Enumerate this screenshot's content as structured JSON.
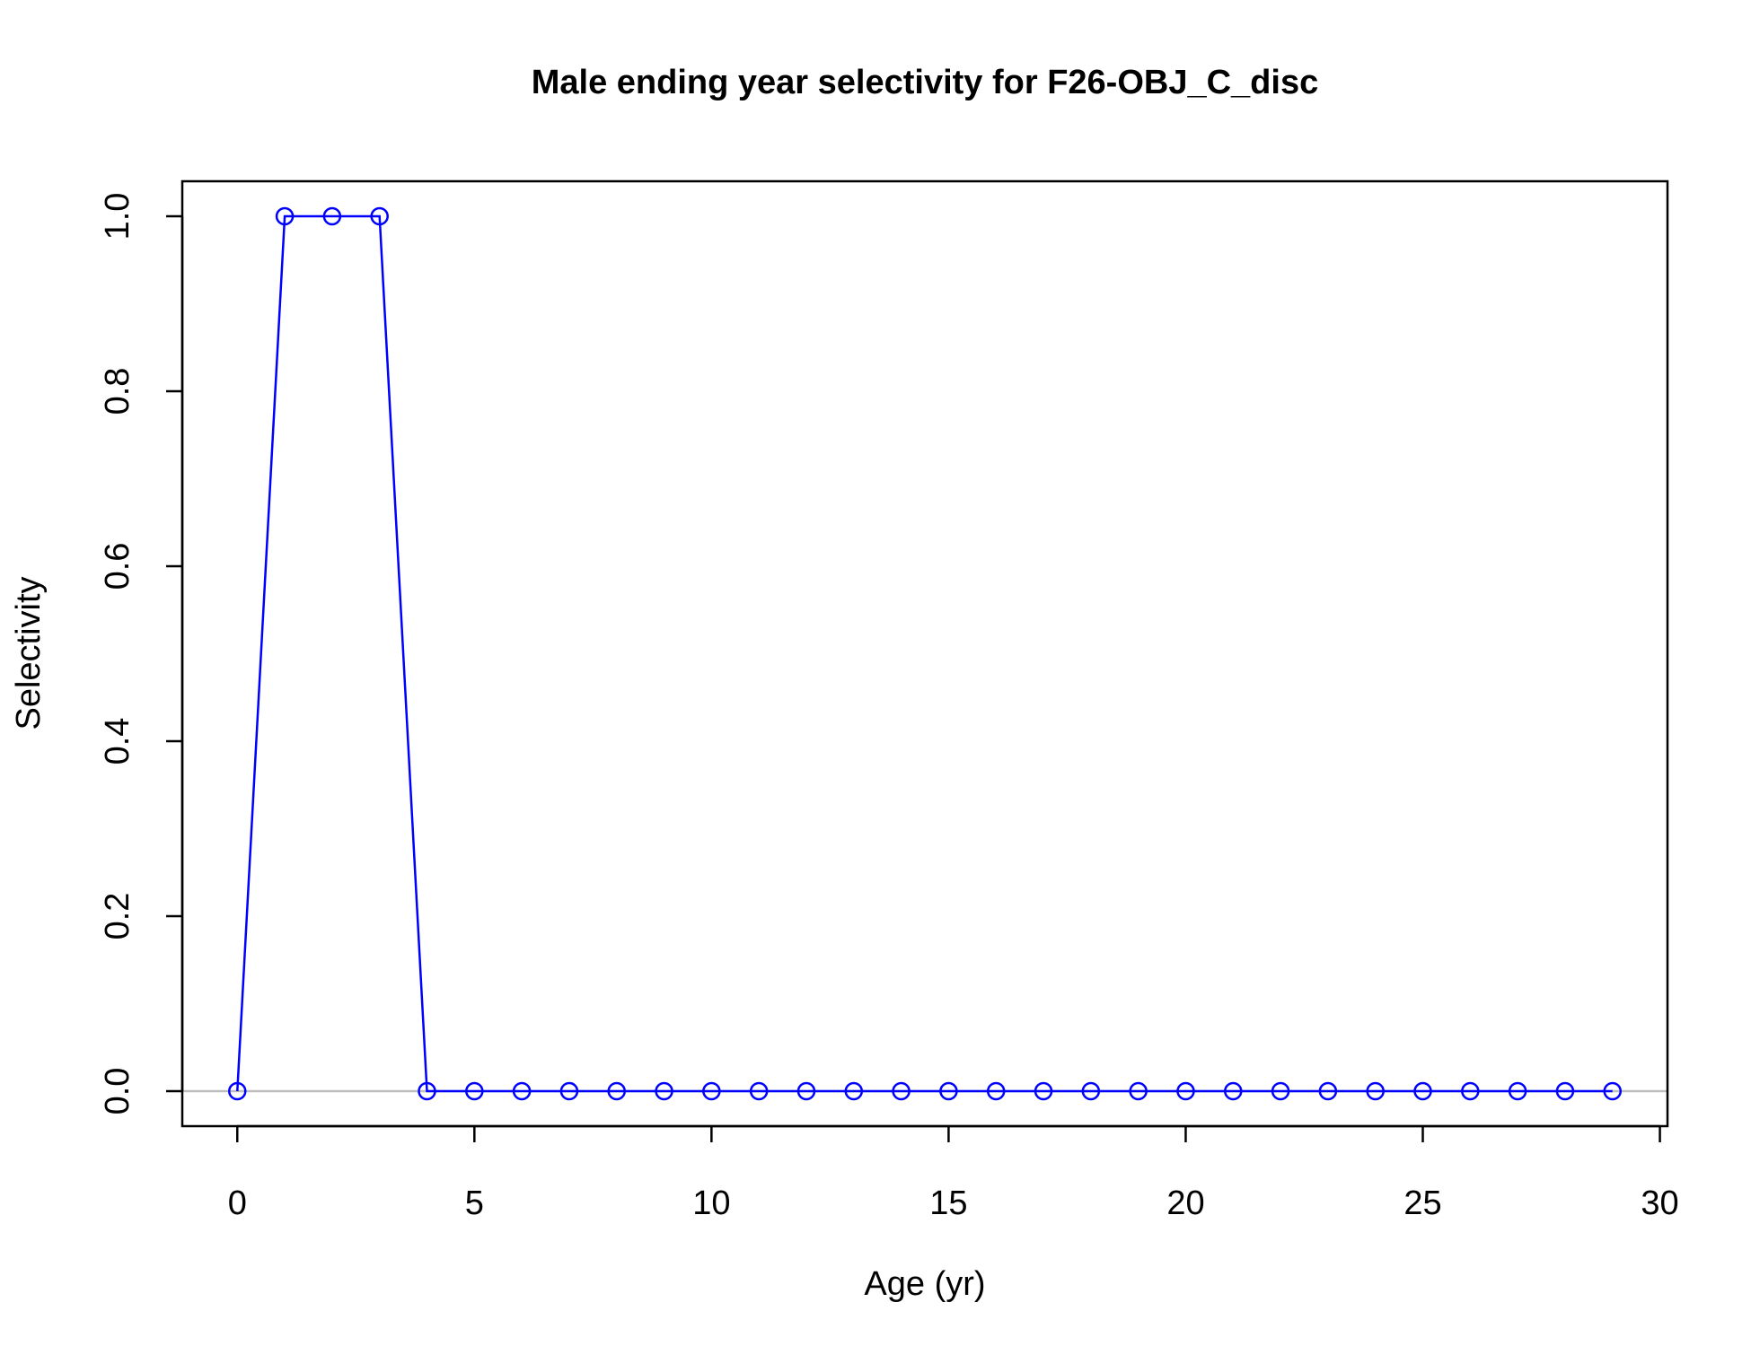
{
  "chart_data": {
    "type": "line",
    "title": "Male ending year selectivity for F26-OBJ_C_disc",
    "xlabel": "Age (yr)",
    "ylabel": "Selectivity",
    "xlim": [
      -1.16,
      30.16
    ],
    "ylim": [
      -0.04,
      1.04
    ],
    "x_ticks": [
      0,
      5,
      10,
      15,
      20,
      25,
      30
    ],
    "y_ticks": [
      0.0,
      0.2,
      0.4,
      0.6,
      0.8,
      1.0
    ],
    "x_tick_labels": [
      "0",
      "5",
      "10",
      "15",
      "20",
      "25",
      "30"
    ],
    "y_tick_labels": [
      "0.0",
      "0.2",
      "0.4",
      "0.6",
      "0.8",
      "1.0"
    ],
    "reference_line_y": 0,
    "grid": false,
    "colors": {
      "series": "#0000ff",
      "reference": "#bebebe",
      "axis": "#000000"
    },
    "series": [
      {
        "x": [
          0,
          1,
          2,
          3,
          4,
          5,
          6,
          7,
          8,
          9,
          10,
          11,
          12,
          13,
          14,
          15,
          16,
          17,
          18,
          19,
          20,
          21,
          22,
          23,
          24,
          25,
          26,
          27,
          28,
          29
        ],
        "values": [
          0,
          1,
          1,
          1,
          0,
          0,
          0,
          0,
          0,
          0,
          0,
          0,
          0,
          0,
          0,
          0,
          0,
          0,
          0,
          0,
          0,
          0,
          0,
          0,
          0,
          0,
          0,
          0,
          0,
          0
        ]
      }
    ]
  }
}
